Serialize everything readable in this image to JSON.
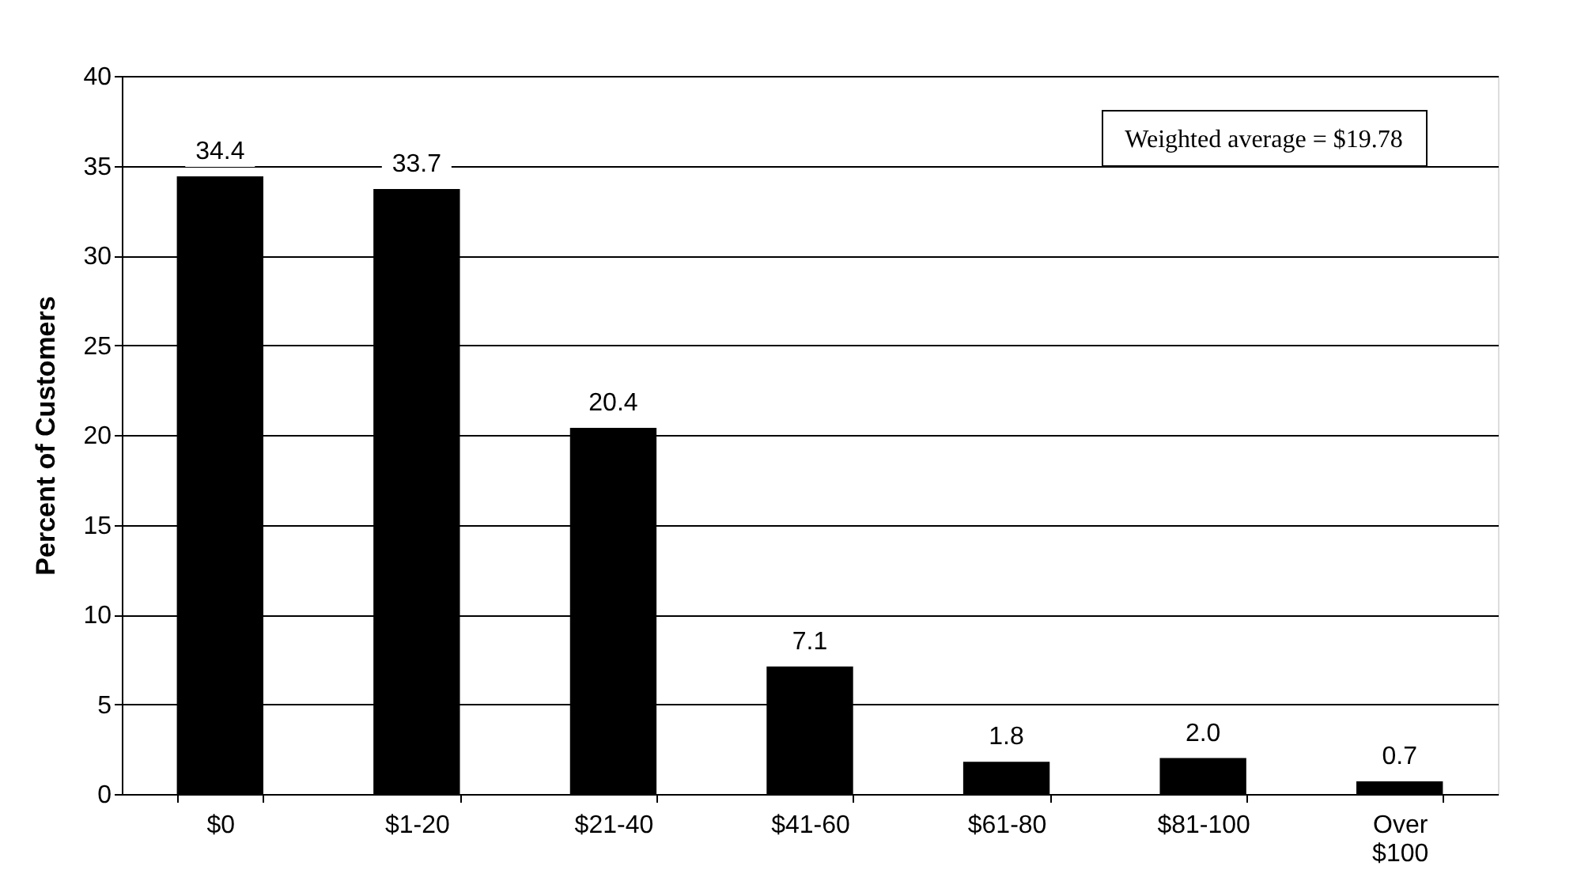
{
  "chart_data": {
    "type": "bar",
    "ylabel": "Percent of Customers",
    "categories": [
      "$0",
      "$1-20",
      "$21-40",
      "$41-60",
      "$61-80",
      "$81-100",
      "Over $100"
    ],
    "values": [
      34.4,
      33.7,
      20.4,
      7.1,
      1.8,
      2.0,
      0.7
    ],
    "value_labels": [
      "34.4",
      "33.7",
      "20.4",
      "7.1",
      "1.8",
      "2.0",
      "0.7"
    ],
    "color": "#000000",
    "ylim": [
      0,
      40
    ],
    "yticks": [
      0,
      5,
      10,
      15,
      20,
      25,
      30,
      35,
      40
    ],
    "grid": "y",
    "annotations": [
      "Weighted average = $19.78"
    ]
  }
}
